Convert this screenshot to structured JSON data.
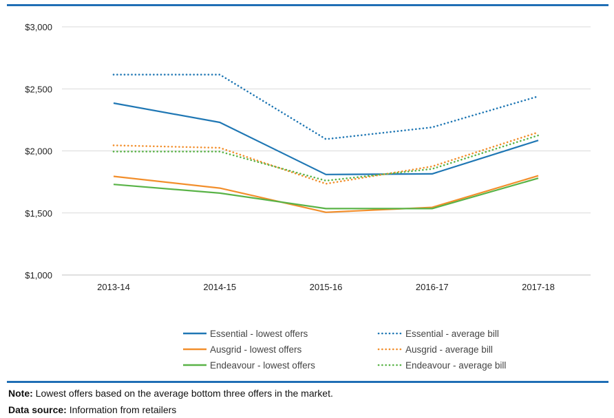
{
  "chart_data": {
    "type": "line",
    "categories": [
      "2013-14",
      "2014-15",
      "2015-16",
      "2016-17",
      "2017-18"
    ],
    "y_ticks": [
      "$1,000",
      "$1,500",
      "$2,000",
      "$2,500",
      "$3,000"
    ],
    "y_tick_values": [
      1000,
      1500,
      2000,
      2500,
      3000
    ],
    "ylim": [
      1000,
      3000
    ],
    "grid": "horizontal",
    "legend_position": "bottom",
    "series": [
      {
        "name": "Essential  - lowest offers",
        "values": [
          2385,
          2230,
          1810,
          1815,
          2085
        ],
        "color": "#1f77b4",
        "style": "solid"
      },
      {
        "name": "Ausgrid - lowest offers",
        "values": [
          1795,
          1700,
          1505,
          1545,
          1800
        ],
        "color": "#f28e2b",
        "style": "solid"
      },
      {
        "name": "Endeavour - lowest offers",
        "values": [
          1730,
          1660,
          1535,
          1535,
          1780
        ],
        "color": "#59b347",
        "style": "solid"
      },
      {
        "name": "Essential - average bill",
        "values": [
          2615,
          2615,
          2095,
          2190,
          2440
        ],
        "color": "#1f77b4",
        "style": "dotted"
      },
      {
        "name": "Ausgrid - average bill",
        "values": [
          2045,
          2025,
          1735,
          1875,
          2150
        ],
        "color": "#f28e2b",
        "style": "dotted"
      },
      {
        "name": "Endeavour - average bill",
        "values": [
          1995,
          1995,
          1760,
          1855,
          2125
        ],
        "color": "#59b347",
        "style": "dotted"
      }
    ]
  },
  "footnotes": {
    "note_label": "Note:",
    "note_text": " Lowest offers based on the average bottom three offers in the market.",
    "source_label": "Data source:",
    "source_text": " Information from retailers"
  }
}
